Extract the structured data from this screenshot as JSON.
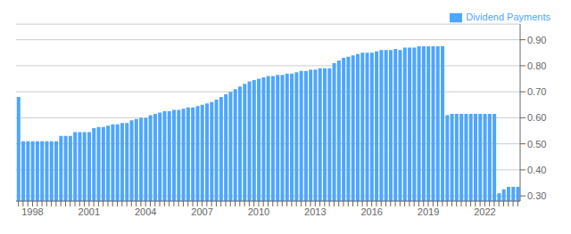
{
  "chart_data": {
    "type": "bar",
    "categories": [
      null,
      null,
      null,
      "1998",
      null,
      null,
      null,
      null,
      null,
      null,
      null,
      null,
      null,
      null,
      null,
      "2001",
      null,
      null,
      null,
      null,
      null,
      null,
      null,
      null,
      null,
      null,
      null,
      "2004",
      null,
      null,
      null,
      null,
      null,
      null,
      null,
      null,
      null,
      null,
      null,
      "2007",
      null,
      null,
      null,
      null,
      null,
      null,
      null,
      null,
      null,
      null,
      null,
      "2010",
      null,
      null,
      null,
      null,
      null,
      null,
      null,
      null,
      null,
      null,
      null,
      "2013",
      null,
      null,
      null,
      null,
      null,
      null,
      null,
      null,
      null,
      null,
      null,
      "2016",
      null,
      null,
      null,
      null,
      null,
      null,
      null,
      null,
      null,
      null,
      null,
      "2019",
      null,
      null,
      null,
      null,
      null,
      null,
      null,
      null,
      null,
      null,
      null,
      "2022",
      null,
      null,
      null,
      null,
      null,
      null,
      null
    ],
    "series": [
      {
        "name": "Dividend Payments",
        "color": "#4DA6FF",
        "values": [
          0.68,
          0.51,
          0.51,
          0.51,
          0.51,
          0.51,
          0.51,
          0.51,
          0.51,
          0.53,
          0.53,
          0.53,
          0.545,
          0.545,
          0.545,
          0.545,
          0.56,
          0.565,
          0.565,
          0.57,
          0.575,
          0.575,
          0.58,
          0.58,
          0.59,
          0.595,
          0.6,
          0.6,
          0.61,
          0.615,
          0.62,
          0.625,
          0.625,
          0.63,
          0.63,
          0.635,
          0.64,
          0.64,
          0.645,
          0.65,
          0.655,
          0.66,
          0.67,
          0.68,
          0.69,
          0.7,
          0.71,
          0.72,
          0.73,
          0.74,
          0.745,
          0.75,
          0.755,
          0.76,
          0.76,
          0.765,
          0.765,
          0.77,
          0.77,
          0.775,
          0.78,
          0.78,
          0.785,
          0.785,
          0.79,
          0.79,
          0.79,
          0.81,
          0.82,
          0.83,
          0.835,
          0.84,
          0.845,
          0.85,
          0.85,
          0.85,
          0.855,
          0.86,
          0.86,
          0.86,
          0.865,
          0.86,
          0.87,
          0.87,
          0.87,
          0.875,
          0.875,
          0.875,
          0.875,
          0.875,
          0.875,
          0.61,
          0.615,
          0.615,
          0.615,
          0.615,
          0.615,
          0.615,
          0.615,
          0.615,
          0.615,
          0.615,
          0.31,
          0.325,
          0.335,
          0.335,
          0.335
        ]
      }
    ],
    "ylim": [
      0.28,
      0.96
    ],
    "yticks": [
      {
        "value": 0.3,
        "label": "0.30"
      },
      {
        "value": 0.4,
        "label": "0.40"
      },
      {
        "value": 0.5,
        "label": "0.50"
      },
      {
        "value": 0.6,
        "label": "0.60"
      },
      {
        "value": 0.7,
        "label": "0.70"
      },
      {
        "value": 0.8,
        "label": "0.80"
      },
      {
        "value": 0.9,
        "label": "0.90"
      }
    ],
    "grid": true,
    "legend": "top right"
  }
}
